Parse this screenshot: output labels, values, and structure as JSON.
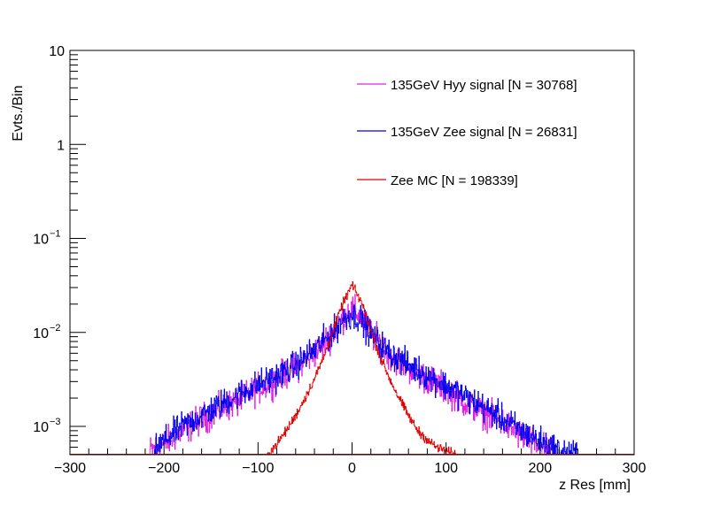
{
  "chart_data": {
    "type": "line",
    "title": "",
    "xlabel": "z Res [mm]",
    "ylabel": "Evts./Bin",
    "xlim": [
      -300,
      300
    ],
    "ylim": [
      0.0005,
      10
    ],
    "yscale": "log",
    "x_ticks": [
      -300,
      -200,
      -100,
      0,
      100,
      200,
      300
    ],
    "x_tick_labels": [
      "−300",
      "−200",
      "−100",
      "0",
      "100",
      "200",
      "300"
    ],
    "y_tick_labels": [
      {
        "value": 10,
        "base": "10",
        "exp": ""
      },
      {
        "value": 1,
        "base": "1",
        "exp": ""
      },
      {
        "value": 0.1,
        "base": "10",
        "exp": "−1"
      },
      {
        "value": 0.01,
        "base": "10",
        "exp": "−2"
      },
      {
        "value": 0.001,
        "base": "10",
        "exp": "−3"
      }
    ],
    "legend": "top-right",
    "series": [
      {
        "name": "135GeV Hyy signal [N = 30768]",
        "color": "#e020e0",
        "noise": 0.32,
        "x": [
          -215,
          -200,
          -180,
          -160,
          -140,
          -120,
          -100,
          -80,
          -60,
          -40,
          -20,
          -10,
          0,
          10,
          20,
          40,
          60,
          80,
          100,
          120,
          140,
          160,
          180,
          200,
          215
        ],
        "values": [
          0.00055,
          0.00065,
          0.0009,
          0.0012,
          0.0015,
          0.0019,
          0.0025,
          0.0032,
          0.0042,
          0.006,
          0.0098,
          0.0145,
          0.0175,
          0.0145,
          0.0098,
          0.0058,
          0.0042,
          0.0032,
          0.0025,
          0.0018,
          0.0014,
          0.0011,
          0.0008,
          0.0006,
          0.00052
        ]
      },
      {
        "name": "135GeV Zee signal [N = 26831]",
        "color": "#0000ee",
        "noise": 0.3,
        "x": [
          -210,
          -200,
          -180,
          -160,
          -140,
          -120,
          -100,
          -80,
          -60,
          -40,
          -20,
          -10,
          0,
          10,
          20,
          40,
          60,
          80,
          100,
          120,
          140,
          160,
          180,
          200,
          220,
          240
        ],
        "values": [
          0.00055,
          0.0007,
          0.001,
          0.0013,
          0.0017,
          0.0022,
          0.0028,
          0.0034,
          0.0045,
          0.0065,
          0.01,
          0.0135,
          0.0155,
          0.0135,
          0.0095,
          0.006,
          0.0045,
          0.0035,
          0.0027,
          0.0021,
          0.0016,
          0.0012,
          0.0009,
          0.0007,
          0.00055,
          0.0005
        ]
      },
      {
        "name": "Zee MC [N = 198339]",
        "color": "#e00000",
        "noise": 0.1,
        "x": [
          -90,
          -80,
          -70,
          -60,
          -50,
          -40,
          -30,
          -20,
          -10,
          0,
          10,
          20,
          30,
          40,
          50,
          60,
          70,
          80,
          90,
          100,
          110
        ],
        "values": [
          0.0005,
          0.00065,
          0.0009,
          0.0013,
          0.002,
          0.0032,
          0.0055,
          0.0105,
          0.02,
          0.032,
          0.021,
          0.0105,
          0.0055,
          0.0032,
          0.002,
          0.0013,
          0.0009,
          0.00072,
          0.0006,
          0.00055,
          0.0005
        ]
      }
    ]
  }
}
